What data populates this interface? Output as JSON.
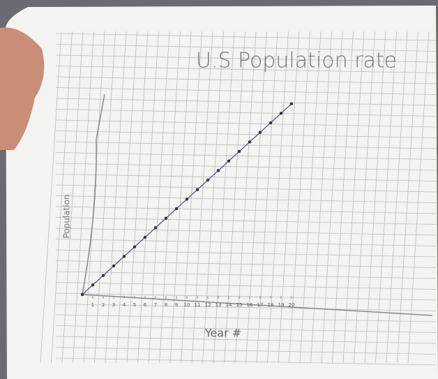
{
  "chart_data": {
    "type": "line",
    "title": "U.S Population rate",
    "x_label": "Year #",
    "y_label": "Population",
    "x": [
      0,
      1,
      2,
      3,
      4,
      5,
      6,
      7,
      8,
      9,
      10,
      11,
      12,
      13,
      14,
      15,
      16,
      17,
      18,
      19,
      20
    ],
    "series": [
      {
        "name": "Population",
        "color": "#4a4a8a",
        "values": [
          0,
          1,
          2,
          3,
          4,
          5,
          6,
          7,
          8,
          9,
          10,
          11,
          12,
          13,
          14,
          15,
          16,
          17,
          18,
          19,
          20
        ]
      }
    ],
    "xlim": [
      0,
      21
    ],
    "xticks": [
      1,
      2,
      3,
      4,
      5,
      6,
      7,
      8,
      9,
      10,
      11,
      12,
      13,
      14,
      15,
      16,
      17,
      18,
      19,
      20
    ],
    "ylim": [
      0,
      21
    ],
    "grid": true
  }
}
